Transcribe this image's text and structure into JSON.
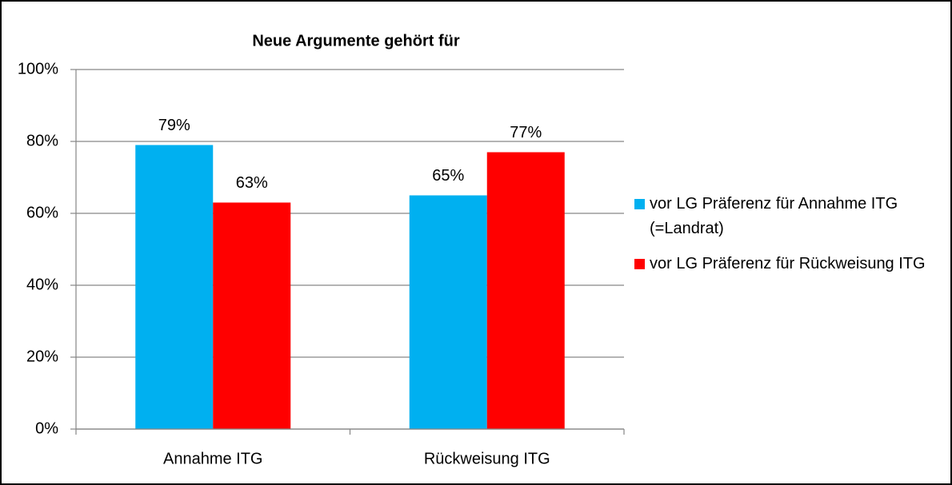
{
  "chart_data": {
    "type": "bar",
    "title": "Neue Argumente gehört für",
    "categories": [
      "Annahme ITG",
      "Rückweisung ITG"
    ],
    "series": [
      {
        "name": "vor LG Präferenz für Annahme ITG (=Landrat)",
        "color": "#00b0f0",
        "values": [
          79,
          65
        ],
        "value_labels": [
          "79%",
          "65%"
        ]
      },
      {
        "name": "vor LG Präferenz für Rückweisung ITG",
        "color": "#ff0000",
        "values": [
          63,
          77
        ],
        "value_labels": [
          "63%",
          "77%"
        ]
      }
    ],
    "ylim": [
      0,
      100
    ],
    "yticks": [
      {
        "value": 0,
        "label": "0%"
      },
      {
        "value": 20,
        "label": "20%"
      },
      {
        "value": 40,
        "label": "40%"
      },
      {
        "value": 60,
        "label": "60%"
      },
      {
        "value": 80,
        "label": "80%"
      },
      {
        "value": 100,
        "label": "100%"
      }
    ],
    "grid": true,
    "legend": "right"
  }
}
